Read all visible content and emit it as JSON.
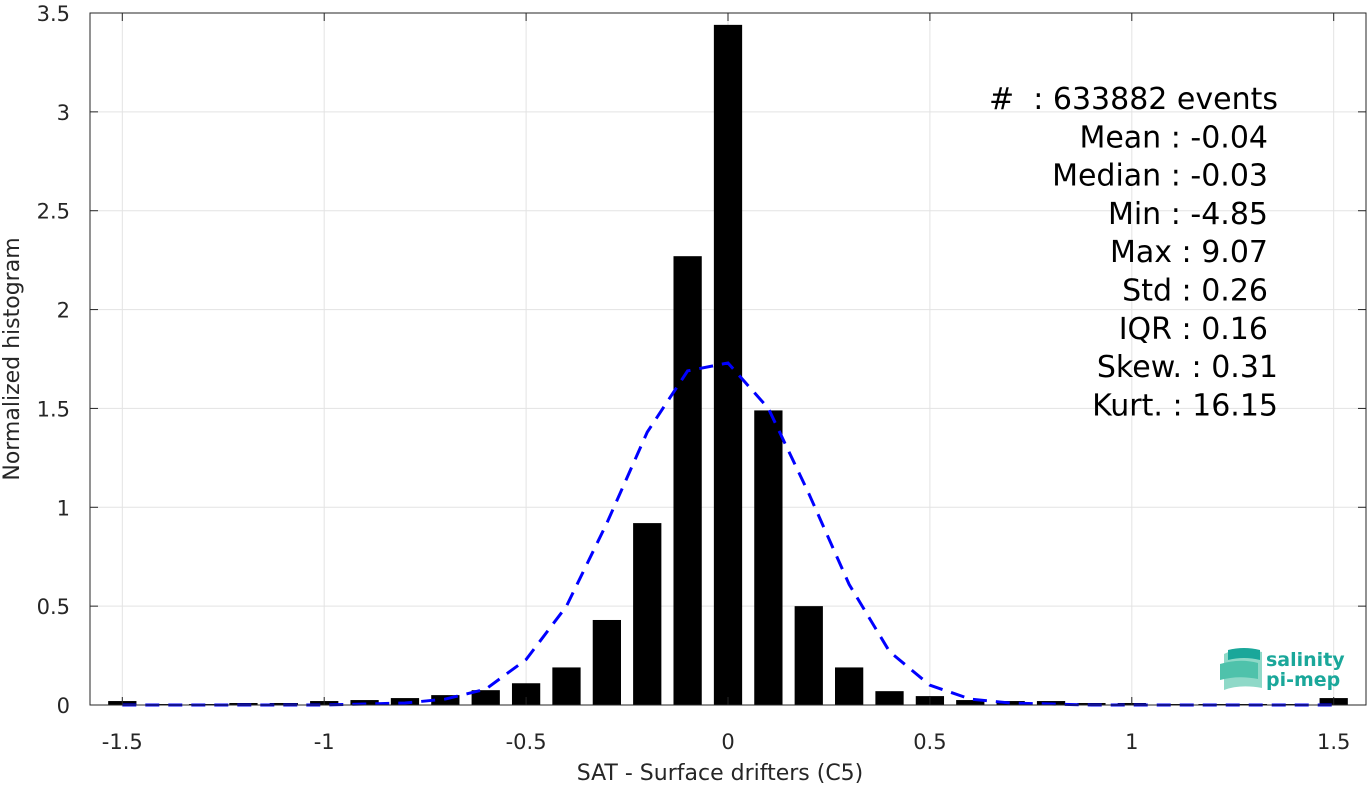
{
  "chart_data": {
    "type": "bar",
    "xlabel": "SAT - Surface drifters (C5)",
    "ylabel": "Normalized histogram",
    "xlim": [
      -1.58,
      1.58
    ],
    "ylim": [
      0,
      3.5
    ],
    "xticks": [
      -1.5,
      -1,
      -0.5,
      0,
      0.5,
      1,
      1.5
    ],
    "xtick_labels": [
      "-1.5",
      "-1",
      "-0.5",
      "0",
      "0.5",
      "1",
      "1.5"
    ],
    "yticks": [
      0,
      0.5,
      1,
      1.5,
      2,
      2.5,
      3,
      3.5
    ],
    "ytick_labels": [
      "0",
      "0.5",
      "1",
      "1.5",
      "2",
      "2.5",
      "3",
      "3.5"
    ],
    "grid": true,
    "bar_width": 0.07,
    "bars": {
      "x": [
        -1.5,
        -1.4,
        -1.3,
        -1.2,
        -1.1,
        -1.0,
        -0.9,
        -0.8,
        -0.7,
        -0.6,
        -0.5,
        -0.4,
        -0.3,
        -0.2,
        -0.1,
        0.0,
        0.1,
        0.2,
        0.3,
        0.4,
        0.5,
        0.6,
        0.7,
        0.8,
        0.9,
        1.0,
        1.1,
        1.2,
        1.3,
        1.4,
        1.5
      ],
      "values": [
        0.02,
        0.005,
        0.005,
        0.01,
        0.01,
        0.02,
        0.025,
        0.035,
        0.05,
        0.075,
        0.11,
        0.19,
        0.43,
        0.92,
        2.27,
        3.44,
        1.49,
        0.5,
        0.19,
        0.07,
        0.045,
        0.025,
        0.02,
        0.02,
        0.01,
        0.01,
        0.005,
        0.005,
        0.005,
        0.005,
        0.035
      ],
      "color": "#000000"
    },
    "fit_curve": {
      "style": "dashed",
      "color": "#0000ff",
      "x": [
        -1.5,
        -1.4,
        -1.3,
        -1.2,
        -1.1,
        -1.0,
        -0.9,
        -0.8,
        -0.7,
        -0.6,
        -0.5,
        -0.4,
        -0.3,
        -0.2,
        -0.1,
        0.0,
        0.1,
        0.2,
        0.3,
        0.4,
        0.5,
        0.6,
        0.7,
        0.8,
        0.9,
        1.0,
        1.1,
        1.2,
        1.3,
        1.4,
        1.5
      ],
      "values": [
        0.0,
        0.0,
        0.0,
        0.0,
        0.0,
        0.0,
        0.005,
        0.01,
        0.03,
        0.08,
        0.23,
        0.5,
        0.92,
        1.38,
        1.69,
        1.73,
        1.5,
        1.07,
        0.61,
        0.27,
        0.1,
        0.03,
        0.01,
        0.005,
        0.0,
        0.0,
        0.0,
        0.0,
        0.0,
        0.0,
        0.0
      ]
    },
    "annotations": [
      "#  : 633882 events",
      "Mean : -0.04",
      "Median : -0.03",
      "Min : -4.85",
      "Max : 9.07",
      "Std : 0.26",
      "IQR : 0.16",
      "Skew. : 0.31",
      "Kurt. : 16.15"
    ]
  },
  "logo": {
    "line1": "salinity",
    "line2": "pi-mep",
    "color": "#1aa79a"
  }
}
